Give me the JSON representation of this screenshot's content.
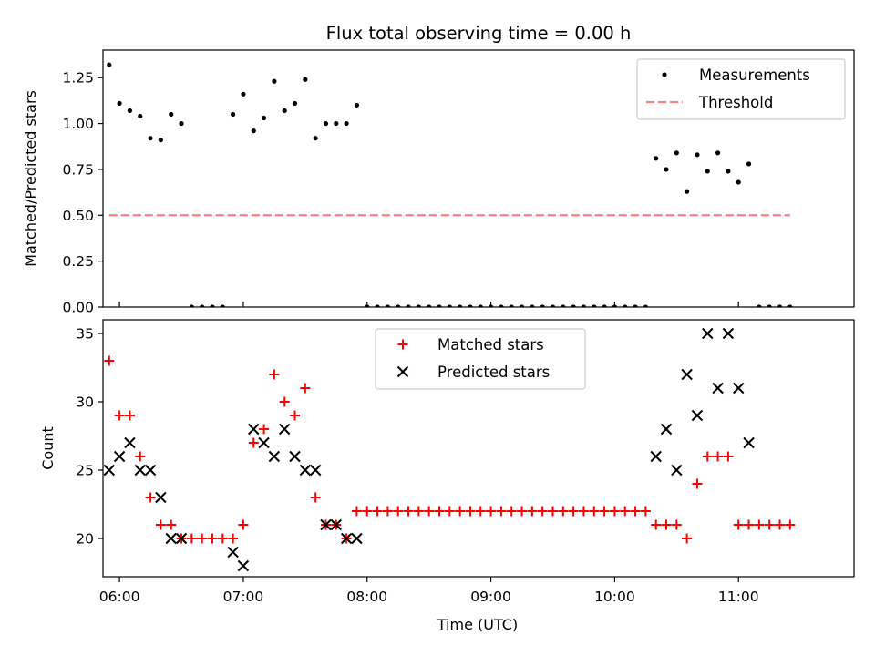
{
  "chart_data": [
    {
      "type": "scatter",
      "title": "Flux total observing time = 0.00 h",
      "xlabel": "",
      "ylabel": "Matched/Predicted stars",
      "xlim": [
        "05:52",
        "11:56"
      ],
      "ylim": [
        0,
        1.4
      ],
      "x_ticks": [
        "06:00",
        "07:00",
        "08:00",
        "09:00",
        "10:00",
        "11:00"
      ],
      "y_ticks": [
        "0.00",
        "0.25",
        "0.50",
        "0.75",
        "1.00",
        "1.25"
      ],
      "legend_position": "top-right",
      "grid": false,
      "series": [
        {
          "name": "Measurements",
          "marker": "dot",
          "color": "#000000",
          "points": [
            [
              "05:55",
              1.32
            ],
            [
              "06:00",
              1.11
            ],
            [
              "06:05",
              1.07
            ],
            [
              "06:10",
              1.04
            ],
            [
              "06:15",
              0.92
            ],
            [
              "06:20",
              0.91
            ],
            [
              "06:25",
              1.05
            ],
            [
              "06:30",
              1.0
            ],
            [
              "06:35",
              0.0
            ],
            [
              "06:40",
              0.0
            ],
            [
              "06:45",
              0.0
            ],
            [
              "06:50",
              0.0
            ],
            [
              "06:55",
              1.05
            ],
            [
              "07:00",
              1.16
            ],
            [
              "07:05",
              0.96
            ],
            [
              "07:10",
              1.03
            ],
            [
              "07:15",
              1.23
            ],
            [
              "07:20",
              1.07
            ],
            [
              "07:25",
              1.11
            ],
            [
              "07:30",
              1.24
            ],
            [
              "07:35",
              0.92
            ],
            [
              "07:40",
              1.0
            ],
            [
              "07:45",
              1.0
            ],
            [
              "07:50",
              1.0
            ],
            [
              "07:55",
              1.1
            ],
            [
              "08:00",
              0.0
            ],
            [
              "08:05",
              0.0
            ],
            [
              "08:10",
              0.0
            ],
            [
              "08:15",
              0.0
            ],
            [
              "08:20",
              0.0
            ],
            [
              "08:25",
              0.0
            ],
            [
              "08:30",
              0.0
            ],
            [
              "08:35",
              0.0
            ],
            [
              "08:40",
              0.0
            ],
            [
              "08:45",
              0.0
            ],
            [
              "08:50",
              0.0
            ],
            [
              "08:55",
              0.0
            ],
            [
              "09:00",
              0.0
            ],
            [
              "09:05",
              0.0
            ],
            [
              "09:10",
              0.0
            ],
            [
              "09:15",
              0.0
            ],
            [
              "09:20",
              0.0
            ],
            [
              "09:25",
              0.0
            ],
            [
              "09:30",
              0.0
            ],
            [
              "09:35",
              0.0
            ],
            [
              "09:40",
              0.0
            ],
            [
              "09:45",
              0.0
            ],
            [
              "09:50",
              0.0
            ],
            [
              "09:55",
              0.0
            ],
            [
              "10:00",
              0.0
            ],
            [
              "10:05",
              0.0
            ],
            [
              "10:10",
              0.0
            ],
            [
              "10:15",
              0.0
            ],
            [
              "10:20",
              0.81
            ],
            [
              "10:25",
              0.75
            ],
            [
              "10:30",
              0.84
            ],
            [
              "10:35",
              0.63
            ],
            [
              "10:40",
              0.83
            ],
            [
              "10:45",
              0.74
            ],
            [
              "10:50",
              0.84
            ],
            [
              "10:55",
              0.74
            ],
            [
              "11:00",
              0.68
            ],
            [
              "11:05",
              0.78
            ],
            [
              "11:10",
              0.0
            ],
            [
              "11:15",
              0.0
            ],
            [
              "11:20",
              0.0
            ],
            [
              "11:25",
              0.0
            ]
          ]
        },
        {
          "name": "Threshold",
          "marker": "dashed-line",
          "color": "#ff7f7f",
          "points": [
            [
              "05:55",
              0.5
            ],
            [
              "11:25",
              0.5
            ]
          ]
        }
      ]
    },
    {
      "type": "scatter",
      "title": "",
      "xlabel": "Time (UTC)",
      "ylabel": "Count",
      "xlim": [
        "05:52",
        "11:56"
      ],
      "ylim": [
        17.2,
        36.0
      ],
      "x_ticks": [
        "06:00",
        "07:00",
        "08:00",
        "09:00",
        "10:00",
        "11:00"
      ],
      "y_ticks": [
        "20",
        "25",
        "30",
        "35"
      ],
      "legend_position": "top-center",
      "grid": false,
      "series": [
        {
          "name": "Matched stars",
          "marker": "plus",
          "color": "#ff0000",
          "points": [
            [
              "05:55",
              33
            ],
            [
              "06:00",
              29
            ],
            [
              "06:05",
              29
            ],
            [
              "06:10",
              26
            ],
            [
              "06:15",
              23
            ],
            [
              "06:20",
              21
            ],
            [
              "06:25",
              21
            ],
            [
              "06:30",
              20
            ],
            [
              "06:35",
              20
            ],
            [
              "06:40",
              20
            ],
            [
              "06:45",
              20
            ],
            [
              "06:50",
              20
            ],
            [
              "06:55",
              20
            ],
            [
              "07:00",
              21
            ],
            [
              "07:05",
              27
            ],
            [
              "07:10",
              28
            ],
            [
              "07:15",
              32
            ],
            [
              "07:20",
              30
            ],
            [
              "07:25",
              29
            ],
            [
              "07:30",
              31
            ],
            [
              "07:35",
              23
            ],
            [
              "07:40",
              21
            ],
            [
              "07:45",
              21
            ],
            [
              "07:50",
              20
            ],
            [
              "07:55",
              22
            ],
            [
              "08:00",
              22
            ],
            [
              "08:05",
              22
            ],
            [
              "08:10",
              22
            ],
            [
              "08:15",
              22
            ],
            [
              "08:20",
              22
            ],
            [
              "08:25",
              22
            ],
            [
              "08:30",
              22
            ],
            [
              "08:35",
              22
            ],
            [
              "08:40",
              22
            ],
            [
              "08:45",
              22
            ],
            [
              "08:50",
              22
            ],
            [
              "08:55",
              22
            ],
            [
              "09:00",
              22
            ],
            [
              "09:05",
              22
            ],
            [
              "09:10",
              22
            ],
            [
              "09:15",
              22
            ],
            [
              "09:20",
              22
            ],
            [
              "09:25",
              22
            ],
            [
              "09:30",
              22
            ],
            [
              "09:35",
              22
            ],
            [
              "09:40",
              22
            ],
            [
              "09:45",
              22
            ],
            [
              "09:50",
              22
            ],
            [
              "09:55",
              22
            ],
            [
              "10:00",
              22
            ],
            [
              "10:05",
              22
            ],
            [
              "10:10",
              22
            ],
            [
              "10:15",
              22
            ],
            [
              "10:20",
              21
            ],
            [
              "10:25",
              21
            ],
            [
              "10:30",
              21
            ],
            [
              "10:35",
              20
            ],
            [
              "10:40",
              24
            ],
            [
              "10:45",
              26
            ],
            [
              "10:50",
              26
            ],
            [
              "10:55",
              26
            ],
            [
              "11:00",
              21
            ],
            [
              "11:05",
              21
            ],
            [
              "11:10",
              21
            ],
            [
              "11:15",
              21
            ],
            [
              "11:20",
              21
            ],
            [
              "11:25",
              21
            ]
          ]
        },
        {
          "name": "Predicted stars",
          "marker": "x",
          "color": "#000000",
          "points": [
            [
              "05:55",
              25
            ],
            [
              "06:00",
              26
            ],
            [
              "06:05",
              27
            ],
            [
              "06:10",
              25
            ],
            [
              "06:15",
              25
            ],
            [
              "06:20",
              23
            ],
            [
              "06:25",
              20
            ],
            [
              "06:30",
              20
            ],
            [
              "06:55",
              19
            ],
            [
              "07:00",
              18
            ],
            [
              "07:05",
              28
            ],
            [
              "07:10",
              27
            ],
            [
              "07:15",
              26
            ],
            [
              "07:20",
              28
            ],
            [
              "07:25",
              26
            ],
            [
              "07:30",
              25
            ],
            [
              "07:35",
              25
            ],
            [
              "07:40",
              21
            ],
            [
              "07:45",
              21
            ],
            [
              "07:50",
              20
            ],
            [
              "07:55",
              20
            ],
            [
              "10:20",
              26
            ],
            [
              "10:25",
              28
            ],
            [
              "10:30",
              25
            ],
            [
              "10:35",
              32
            ],
            [
              "10:40",
              29
            ],
            [
              "10:45",
              35
            ],
            [
              "10:50",
              31
            ],
            [
              "10:55",
              35
            ],
            [
              "11:00",
              31
            ],
            [
              "11:05",
              27
            ]
          ]
        }
      ]
    }
  ]
}
